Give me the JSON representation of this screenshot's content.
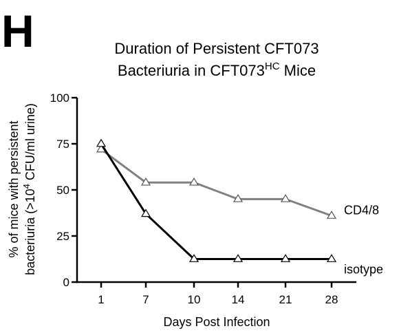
{
  "panel_letter": "H",
  "chart_data": {
    "type": "line",
    "title_line1": "Duration of Persistent CFT073",
    "title_line2_prefix": "Bacteriuria in CFT073",
    "title_line2_sup": "HC",
    "title_line2_suffix": " Mice",
    "ylabel_line1": "% of mice with persistent",
    "ylabel_line2_prefix": "bacteriuria (>10",
    "ylabel_line2_sup": "4",
    "ylabel_line2_suffix": " CFU/ml urine)",
    "xlabel": "Days Post Infection",
    "categories": [
      "1",
      "7",
      "10",
      "14",
      "21",
      "28"
    ],
    "yticks": [
      "0",
      "25",
      "50",
      "75",
      "100"
    ],
    "ylim": [
      0,
      100
    ],
    "grid": false,
    "series": [
      {
        "name": "CD4/8",
        "values": [
          72,
          54,
          54,
          45,
          45,
          36
        ],
        "color": "#808080"
      },
      {
        "name": "isotype",
        "values": [
          75,
          37,
          12.5,
          12.5,
          12.5,
          12.5
        ],
        "color": "#000000"
      }
    ]
  }
}
